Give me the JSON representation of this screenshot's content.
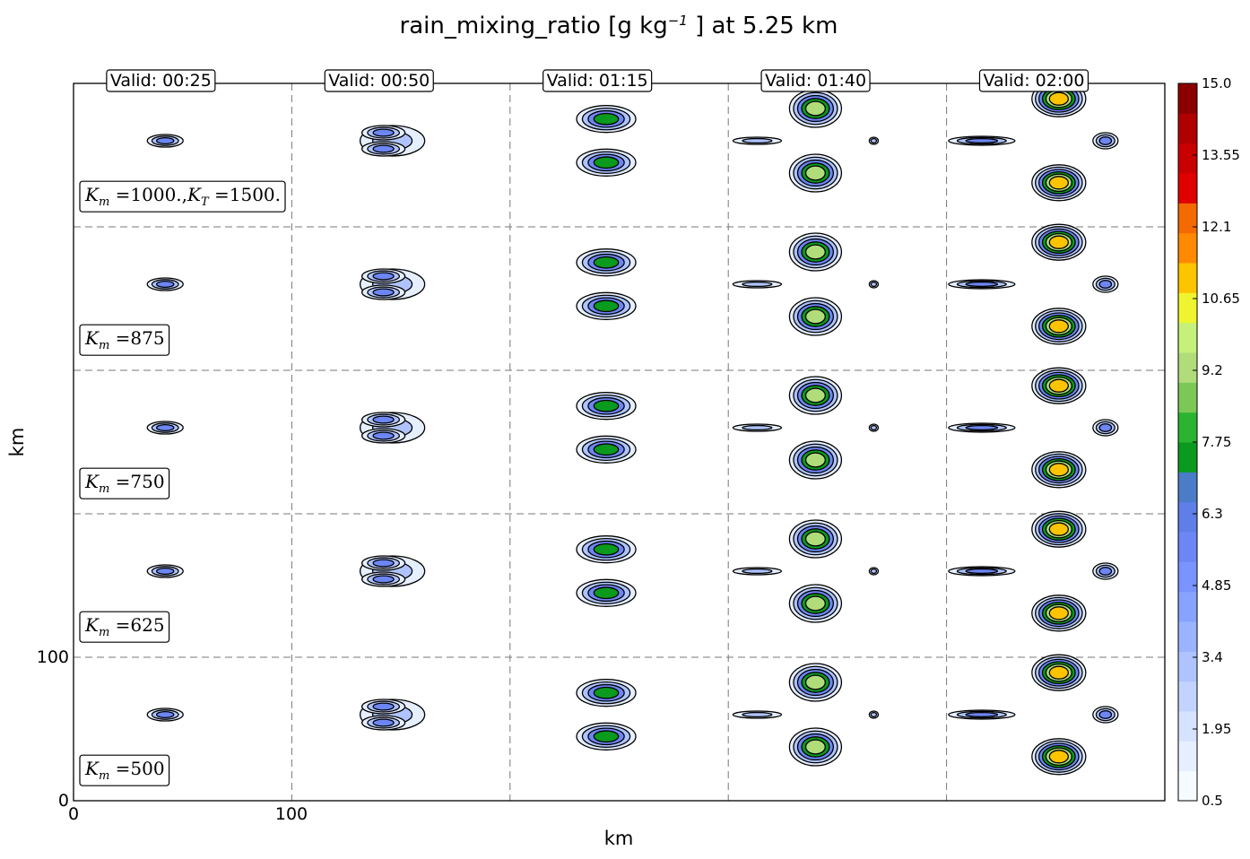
{
  "chart_data": {
    "type": "contour",
    "title_base": "rain_mixing_ratio [g kg",
    "title_exp": "−1",
    "title_tail": " ] at 5.25 km",
    "xlabel": "km",
    "ylabel": "km",
    "x_ticks": [
      "0",
      "100"
    ],
    "y_ticks": [
      "0",
      "100"
    ],
    "columns": [
      "Valid: 00:25",
      "Valid: 00:50",
      "Valid: 01:15",
      "Valid: 01:40",
      "Valid: 02:00"
    ],
    "rows": [
      {
        "label": "K_m =1000.,K_T =1500.",
        "label_parts": [
          "K",
          "m",
          " =1000.,",
          "K",
          "T",
          " =1500."
        ]
      },
      {
        "label": "K_m =875",
        "label_parts": [
          "K",
          "m",
          " =875"
        ]
      },
      {
        "label": "K_m =750",
        "label_parts": [
          "K",
          "m",
          " =750"
        ]
      },
      {
        "label": "K_m =625",
        "label_parts": [
          "K",
          "m",
          " =625"
        ]
      },
      {
        "label": "K_m =500",
        "label_parts": [
          "K",
          "m",
          " =500"
        ]
      }
    ],
    "colorbar": {
      "ticks": [
        "15.0",
        "13.55",
        "12.1",
        "10.65",
        "9.2",
        "7.75",
        "6.3",
        "4.85",
        "3.4",
        "1.95",
        "0.5"
      ],
      "colors": [
        "#f5fbff",
        "#e6efff",
        "#d6e3ff",
        "#c3d3ff",
        "#aec3ff",
        "#9ab4ff",
        "#87a3ff",
        "#7993ff",
        "#6d86f5",
        "#5f7ee8",
        "#4a7cc8",
        "#0a9a1e",
        "#2bb432",
        "#7bc857",
        "#b0dc7a",
        "#c5f07a",
        "#eef530",
        "#ffc400",
        "#ff8a00",
        "#f56a00",
        "#e00000",
        "#c80000",
        "#b00000",
        "#8b0000"
      ],
      "min": 0.5,
      "max": 15.0
    },
    "grid": true
  }
}
